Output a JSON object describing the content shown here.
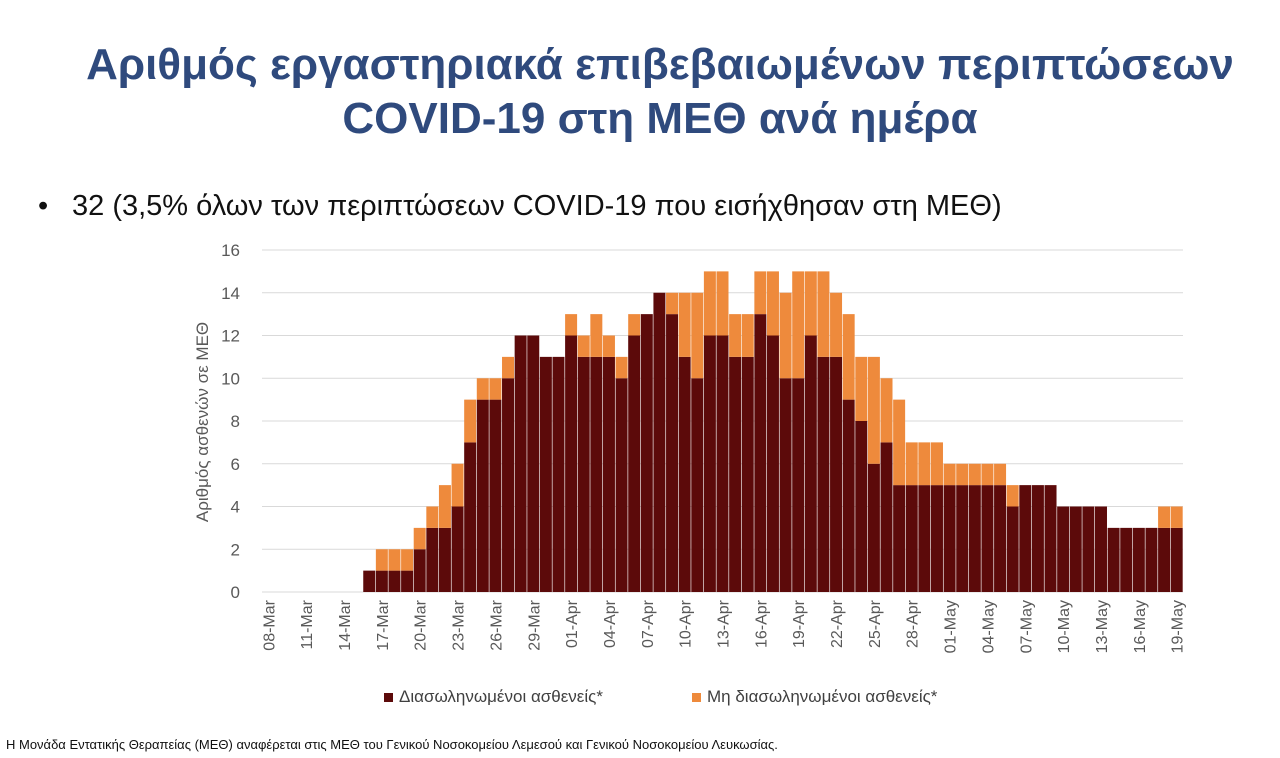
{
  "title": {
    "line1": "Αριθμός εργαστηριακά επιβεβαιωμένων περιπτώσεων",
    "line2": "COVID-19 στη ΜΕΘ ανά ημέρα"
  },
  "bullet": "32 (3,5% όλων των περιπτώσεων COVID-19 που εισήχθησαν στη ΜΕΘ)",
  "footnote": "Η Μονάδα Εντατικής Θεραπείας (ΜΕΘ) αναφέρεται στις ΜΕΘ του Γενικού Νοσοκομείου Λεμεσού και Γενικού Νοσοκομείου Λευκωσίας.",
  "colors": {
    "title": "#2f4a7d",
    "discharged": "#5c0a0a",
    "not_discharged": "#ee8a3c",
    "grid": "#d9d9d9"
  },
  "chart_data": {
    "type": "bar",
    "stacked": true,
    "ylabel": "Αριθμός ασθενών σε ΜΕΘ",
    "xlabel": "",
    "ylim": [
      0,
      16
    ],
    "yticks": [
      0,
      2,
      4,
      6,
      8,
      10,
      12,
      14,
      16
    ],
    "grid": true,
    "legend_position": "bottom",
    "categories": [
      "08-Mar",
      "09-Mar",
      "10-Mar",
      "11-Mar",
      "12-Mar",
      "13-Mar",
      "14-Mar",
      "15-Mar",
      "16-Mar",
      "17-Mar",
      "18-Mar",
      "19-Mar",
      "20-Mar",
      "21-Mar",
      "22-Mar",
      "23-Mar",
      "24-Mar",
      "25-Mar",
      "26-Mar",
      "27-Mar",
      "28-Mar",
      "29-Mar",
      "30-Mar",
      "31-Mar",
      "01-Apr",
      "02-Apr",
      "03-Apr",
      "04-Apr",
      "05-Apr",
      "06-Apr",
      "07-Apr",
      "08-Apr",
      "09-Apr",
      "10-Apr",
      "11-Apr",
      "12-Apr",
      "13-Apr",
      "14-Apr",
      "15-Apr",
      "16-Apr",
      "17-Apr",
      "18-Apr",
      "19-Apr",
      "20-Apr",
      "21-Apr",
      "22-Apr",
      "23-Apr",
      "24-Apr",
      "25-Apr",
      "26-Apr",
      "27-Apr",
      "28-Apr",
      "29-Apr",
      "30-Apr",
      "01-May",
      "02-May",
      "03-May",
      "04-May",
      "05-May",
      "06-May",
      "07-May",
      "08-May",
      "09-May",
      "10-May",
      "11-May",
      "12-May",
      "13-May",
      "14-May",
      "15-May",
      "16-May",
      "17-May",
      "18-May",
      "19-May"
    ],
    "tick_labels": [
      "08-Mar",
      "11-Mar",
      "14-Mar",
      "17-Mar",
      "20-Mar",
      "23-Mar",
      "26-Mar",
      "29-Mar",
      "01-Apr",
      "04-Apr",
      "07-Apr",
      "10-Apr",
      "13-Apr",
      "16-Apr",
      "19-Apr",
      "22-Apr",
      "25-Apr",
      "28-Apr",
      "01-May",
      "04-May",
      "07-May",
      "10-May",
      "13-May",
      "16-May",
      "19-May"
    ],
    "series": [
      {
        "name": "Διασωληνωμένοι ασθενείς*",
        "color": "#5c0a0a",
        "values": [
          0,
          0,
          0,
          0,
          0,
          0,
          0,
          0,
          1,
          1,
          1,
          1,
          2,
          3,
          3,
          4,
          7,
          9,
          9,
          10,
          12,
          12,
          11,
          11,
          12,
          11,
          11,
          11,
          10,
          12,
          13,
          14,
          13,
          11,
          10,
          12,
          12,
          11,
          11,
          13,
          12,
          10,
          10,
          12,
          11,
          11,
          9,
          8,
          6,
          7,
          5,
          5,
          5,
          5,
          5,
          5,
          5,
          5,
          5,
          4,
          5,
          5,
          5,
          4,
          4,
          4,
          4,
          3,
          3,
          3,
          3,
          3,
          3
        ]
      },
      {
        "name": "Μη διασωληνωμένοι ασθενείς*",
        "color": "#ee8a3c",
        "values": [
          0,
          0,
          0,
          0,
          0,
          0,
          0,
          0,
          0,
          1,
          1,
          1,
          1,
          1,
          2,
          2,
          2,
          1,
          1,
          1,
          0,
          0,
          0,
          0,
          1,
          1,
          2,
          1,
          1,
          1,
          0,
          0,
          1,
          3,
          4,
          3,
          3,
          2,
          2,
          2,
          3,
          4,
          5,
          3,
          4,
          3,
          4,
          3,
          5,
          3,
          4,
          2,
          2,
          2,
          1,
          1,
          1,
          1,
          1,
          1,
          0,
          0,
          0,
          0,
          0,
          0,
          0,
          0,
          0,
          0,
          0,
          1,
          1
        ]
      }
    ]
  }
}
